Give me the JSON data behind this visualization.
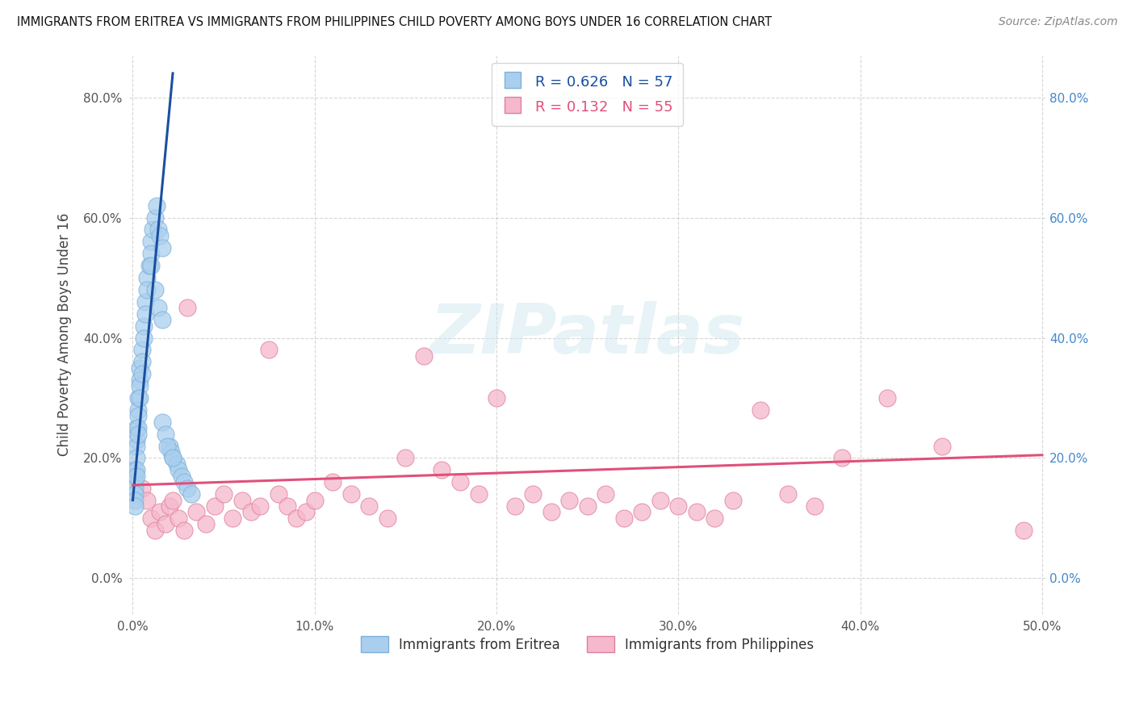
{
  "title": "IMMIGRANTS FROM ERITREA VS IMMIGRANTS FROM PHILIPPINES CHILD POVERTY AMONG BOYS UNDER 16 CORRELATION CHART",
  "source": "Source: ZipAtlas.com",
  "ylabel": "Child Poverty Among Boys Under 16",
  "xlim": [
    -0.002,
    0.502
  ],
  "ylim": [
    -0.06,
    0.87
  ],
  "x_ticks": [
    0.0,
    0.1,
    0.2,
    0.3,
    0.4,
    0.5
  ],
  "x_tick_labels": [
    "0.0%",
    "10.0%",
    "20.0%",
    "30.0%",
    "40.0%",
    "50.0%"
  ],
  "y_ticks": [
    0.0,
    0.2,
    0.4,
    0.6,
    0.8
  ],
  "y_tick_labels": [
    "0.0%",
    "20.0%",
    "40.0%",
    "60.0%",
    "80.0%"
  ],
  "eritrea_dot_color": "#aacfee",
  "eritrea_dot_edge": "#80b0d8",
  "eritrea_line_color": "#1a4fa0",
  "philippines_dot_color": "#f5b8cc",
  "philippines_dot_edge": "#e08099",
  "philippines_line_color": "#e0507a",
  "R_eritrea": 0.626,
  "N_eritrea": 57,
  "R_philippines": 0.132,
  "N_philippines": 55,
  "watermark": "ZIPatlas",
  "eritrea_x": [
    0.001,
    0.001,
    0.001,
    0.001,
    0.001,
    0.001,
    0.001,
    0.002,
    0.002,
    0.002,
    0.002,
    0.002,
    0.002,
    0.003,
    0.003,
    0.003,
    0.003,
    0.003,
    0.004,
    0.004,
    0.004,
    0.004,
    0.005,
    0.005,
    0.005,
    0.006,
    0.006,
    0.007,
    0.007,
    0.008,
    0.008,
    0.009,
    0.01,
    0.01,
    0.011,
    0.012,
    0.013,
    0.014,
    0.015,
    0.016,
    0.02,
    0.021,
    0.022,
    0.024,
    0.025,
    0.027,
    0.028,
    0.03,
    0.032,
    0.01,
    0.016,
    0.018,
    0.019,
    0.022,
    0.012,
    0.014,
    0.016
  ],
  "eritrea_y": [
    0.18,
    0.17,
    0.16,
    0.15,
    0.14,
    0.13,
    0.12,
    0.25,
    0.23,
    0.22,
    0.2,
    0.18,
    0.17,
    0.3,
    0.28,
    0.27,
    0.25,
    0.24,
    0.35,
    0.33,
    0.32,
    0.3,
    0.38,
    0.36,
    0.34,
    0.42,
    0.4,
    0.46,
    0.44,
    0.5,
    0.48,
    0.52,
    0.56,
    0.54,
    0.58,
    0.6,
    0.62,
    0.58,
    0.57,
    0.55,
    0.22,
    0.21,
    0.2,
    0.19,
    0.18,
    0.17,
    0.16,
    0.15,
    0.14,
    0.52,
    0.26,
    0.24,
    0.22,
    0.2,
    0.48,
    0.45,
    0.43
  ],
  "philippines_x": [
    0.005,
    0.008,
    0.01,
    0.012,
    0.015,
    0.018,
    0.02,
    0.022,
    0.025,
    0.028,
    0.03,
    0.035,
    0.04,
    0.045,
    0.05,
    0.055,
    0.06,
    0.065,
    0.07,
    0.075,
    0.08,
    0.085,
    0.09,
    0.095,
    0.1,
    0.11,
    0.12,
    0.13,
    0.14,
    0.15,
    0.16,
    0.17,
    0.18,
    0.19,
    0.2,
    0.21,
    0.22,
    0.23,
    0.24,
    0.25,
    0.26,
    0.27,
    0.28,
    0.29,
    0.3,
    0.31,
    0.32,
    0.33,
    0.345,
    0.36,
    0.375,
    0.39,
    0.415,
    0.445,
    0.49
  ],
  "philippines_y": [
    0.15,
    0.13,
    0.1,
    0.08,
    0.11,
    0.09,
    0.12,
    0.13,
    0.1,
    0.08,
    0.45,
    0.11,
    0.09,
    0.12,
    0.14,
    0.1,
    0.13,
    0.11,
    0.12,
    0.38,
    0.14,
    0.12,
    0.1,
    0.11,
    0.13,
    0.16,
    0.14,
    0.12,
    0.1,
    0.2,
    0.37,
    0.18,
    0.16,
    0.14,
    0.3,
    0.12,
    0.14,
    0.11,
    0.13,
    0.12,
    0.14,
    0.1,
    0.11,
    0.13,
    0.12,
    0.11,
    0.1,
    0.13,
    0.28,
    0.14,
    0.12,
    0.2,
    0.3,
    0.22,
    0.08
  ],
  "eritrea_line_x": [
    0.0,
    0.022
  ],
  "eritrea_line_y": [
    0.13,
    0.84
  ],
  "philippines_line_x": [
    0.0,
    0.5
  ],
  "philippines_line_y": [
    0.155,
    0.205
  ]
}
